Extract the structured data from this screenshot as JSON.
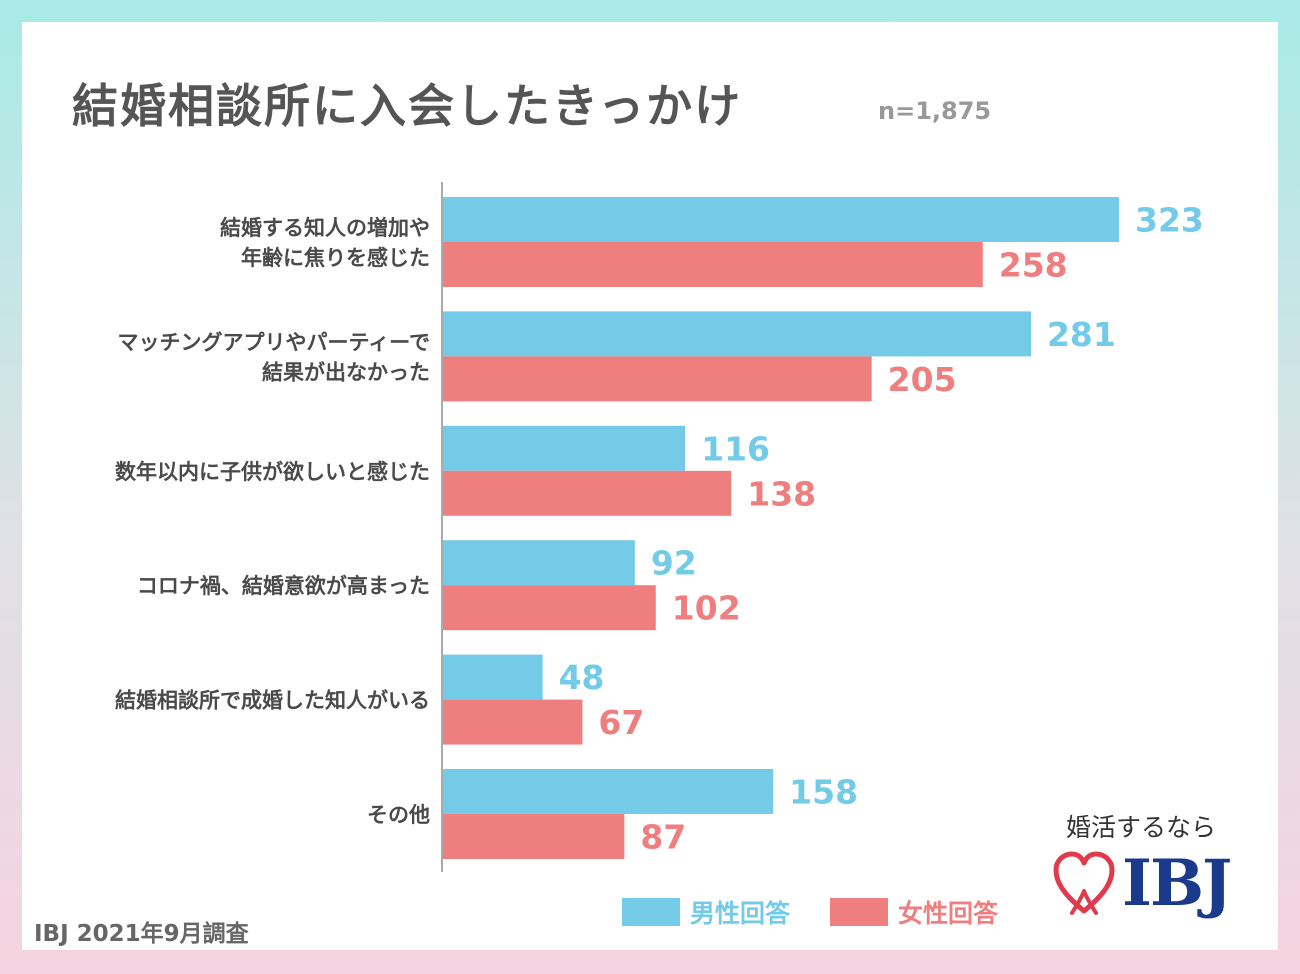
{
  "title": "結婚相談所に入会したきっかけ",
  "sample_size": "n=1,875",
  "source": "IBJ 2021年9月調査",
  "brand": {
    "tagline": "婚活するなら",
    "name": "IBJ",
    "icon": "heart-icon"
  },
  "colors": {
    "male": "#73cbe8",
    "female": "#ef7f7f",
    "axis": "#aaaaaa"
  },
  "legend": {
    "male": "男性回答",
    "female": "女性回答"
  },
  "chart_data": {
    "type": "bar",
    "orientation": "horizontal",
    "categories": [
      [
        "結婚する知人の増加や",
        "年齢に焦りを感じた"
      ],
      [
        "マッチングアプリやパーティーで",
        "結果が出なかった"
      ],
      [
        "数年以内に子供が欲しいと感じた"
      ],
      [
        "コロナ禍、結婚意欲が高まった"
      ],
      [
        "結婚相談所で成婚した知人がいる"
      ],
      [
        "その他"
      ]
    ],
    "series": [
      {
        "name": "男性回答",
        "values": [
          323,
          281,
          116,
          92,
          48,
          158
        ]
      },
      {
        "name": "女性回答",
        "values": [
          258,
          205,
          138,
          102,
          67,
          87
        ]
      }
    ],
    "xlim": [
      0,
      323
    ],
    "legend_position": "bottom-right",
    "grid": false
  }
}
